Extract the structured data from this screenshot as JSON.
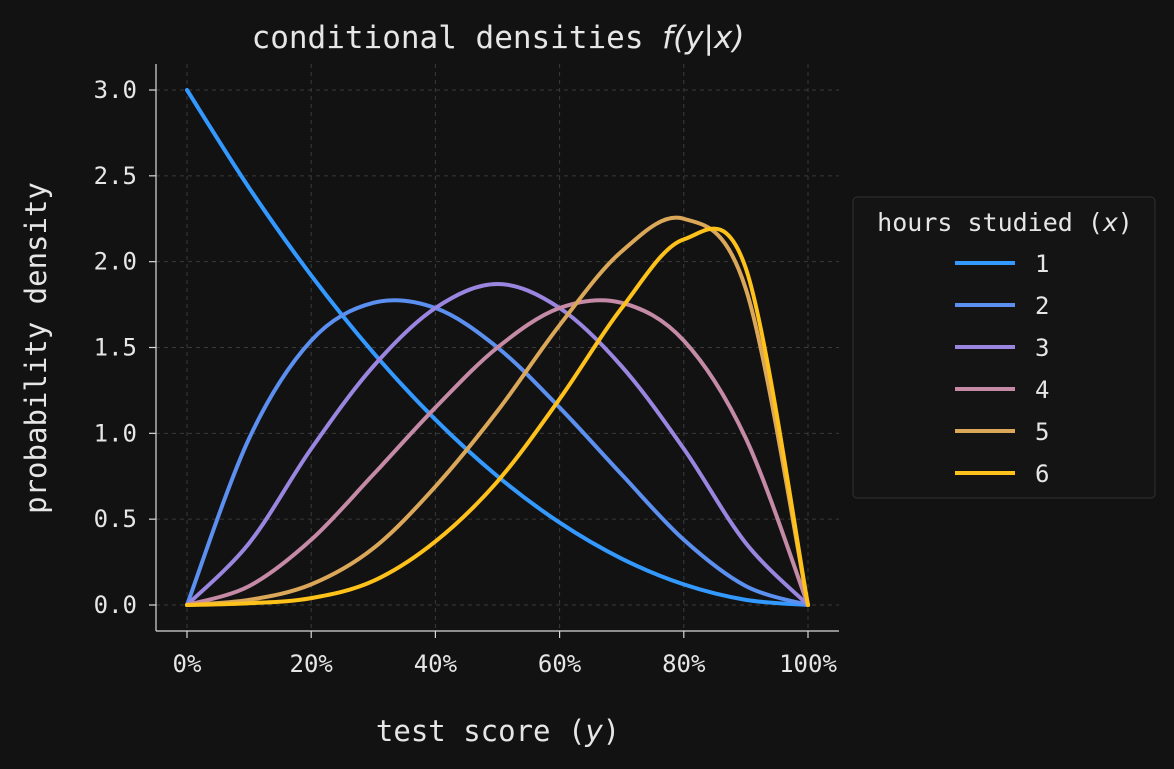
{
  "chart_data": {
    "type": "line",
    "title": "conditional densities ",
    "title_math": "f(y|x)",
    "xlabel": "test score (",
    "xlabel_var": "y",
    "xlabel_close": ")",
    "ylabel": "probability density",
    "xlim": [
      0,
      1
    ],
    "ylim": [
      0,
      3
    ],
    "x_ticks": [
      0,
      0.2,
      0.4,
      0.6,
      0.8,
      1.0
    ],
    "x_tick_labels": [
      "0%",
      "20%",
      "40%",
      "60%",
      "80%",
      "100%"
    ],
    "y_ticks": [
      0,
      0.5,
      1.0,
      1.5,
      2.0,
      2.5,
      3.0
    ],
    "y_tick_labels": [
      "0.0",
      "0.5",
      "1.0",
      "1.5",
      "2.0",
      "2.5",
      "3.0"
    ],
    "grid": true,
    "legend": {
      "placement": "right",
      "title": "hours studied (",
      "title_var": "x",
      "title_close": ")"
    },
    "series": [
      {
        "name": "1",
        "color": "#3399ff",
        "x": [
          0,
          0.1,
          0.2,
          0.3,
          0.4,
          0.5,
          0.6,
          0.7,
          0.8,
          0.9,
          1.0
        ],
        "y": [
          3.0,
          2.43,
          1.92,
          1.47,
          1.08,
          0.75,
          0.48,
          0.27,
          0.12,
          0.03,
          0.0
        ]
      },
      {
        "name": "2",
        "color": "#5b8ff0",
        "x": [
          0,
          0.1,
          0.2,
          0.3,
          0.4,
          0.5,
          0.6,
          0.7,
          0.8,
          0.9,
          1.0
        ],
        "y": [
          0.0,
          0.97,
          1.54,
          1.76,
          1.73,
          1.5,
          1.15,
          0.76,
          0.38,
          0.11,
          0.0
        ]
      },
      {
        "name": "3",
        "color": "#9a86e0",
        "x": [
          0,
          0.1,
          0.2,
          0.3,
          0.4,
          0.5,
          0.6,
          0.7,
          0.8,
          0.9,
          1.0
        ],
        "y": [
          0.0,
          0.36,
          0.91,
          1.39,
          1.73,
          1.87,
          1.73,
          1.39,
          0.91,
          0.36,
          0.0
        ]
      },
      {
        "name": "4",
        "color": "#c48aa6",
        "x": [
          0,
          0.1,
          0.2,
          0.3,
          0.4,
          0.5,
          0.6,
          0.7,
          0.8,
          0.9,
          1.0
        ],
        "y": [
          0.0,
          0.11,
          0.38,
          0.76,
          1.15,
          1.5,
          1.73,
          1.76,
          1.54,
          0.97,
          0.0
        ]
      },
      {
        "name": "5",
        "color": "#dba85a",
        "x": [
          0,
          0.1,
          0.2,
          0.3,
          0.4,
          0.5,
          0.6,
          0.7,
          0.8,
          0.9,
          1.0
        ],
        "y": [
          0.0,
          0.03,
          0.12,
          0.33,
          0.69,
          1.13,
          1.63,
          2.06,
          2.25,
          1.84,
          0.0
        ]
      },
      {
        "name": "6",
        "color": "#ffc21a",
        "x": [
          0,
          0.1,
          0.2,
          0.3,
          0.4,
          0.5,
          0.6,
          0.7,
          0.8,
          0.9,
          1.0
        ],
        "y": [
          0.0,
          0.01,
          0.04,
          0.14,
          0.37,
          0.72,
          1.2,
          1.73,
          2.13,
          1.96,
          0.0
        ]
      }
    ]
  }
}
